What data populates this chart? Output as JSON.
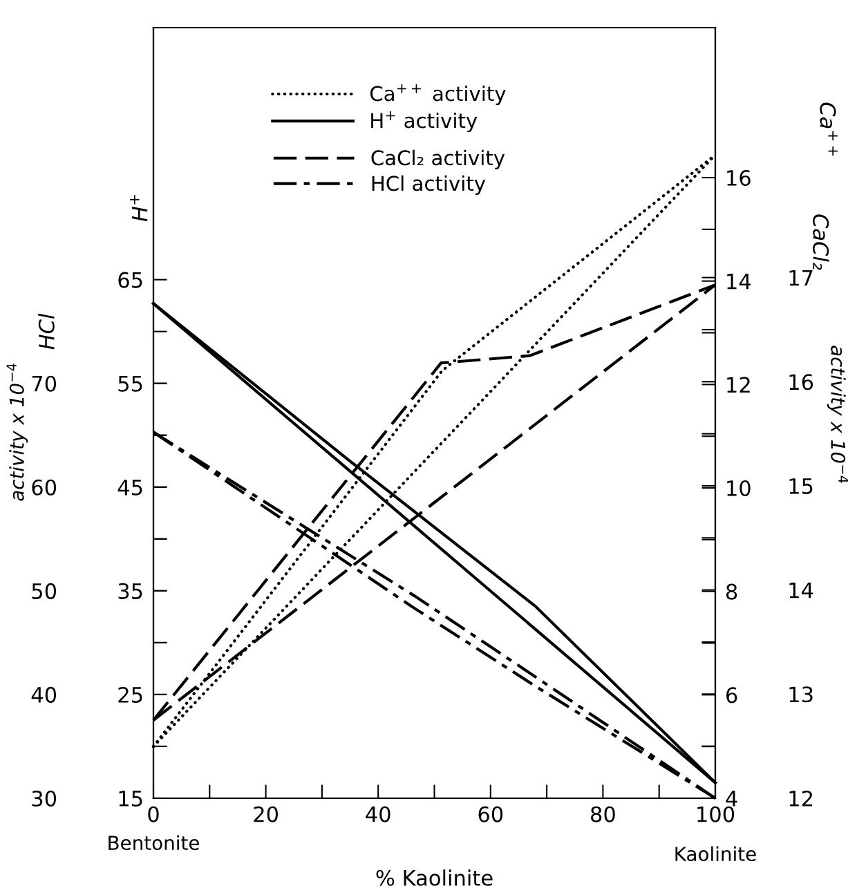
{
  "chart_data": [
    {
      "type": "line",
      "xlabel": "% Kaolinite",
      "ylabel": "H$^{+}$",
      "y2label": "Ca$^{++}$",
      "annotations": [
        "Bentonite",
        "Kaolinite",
        "activity x 10$^{−4}$",
        "activity x 10$^{−4}$"
      ],
      "xlim": [
        0,
        100
      ],
      "xticks": [
        0,
        20,
        40,
        60,
        80,
        100
      ],
      "ylim": [
        15,
        89.3
      ],
      "yticks": [
        15,
        25,
        35,
        45,
        55,
        65
      ],
      "y2lim": [
        4,
        18.9
      ],
      "y2ticks": [
        4,
        6,
        8,
        10,
        12,
        14,
        16
      ],
      "legend": "top",
      "grid": false,
      "series": [
        {
          "name": "Ca$^{++}$ activity",
          "color": "#000000",
          "axis": "y2",
          "line_style": "dotted",
          "x": [
            0,
            51.4,
            100
          ],
          "values": [
            5.0,
            12.27,
            16.44
          ]
        },
        {
          "color": "#000000",
          "axis": "y2",
          "line_style": "dotted",
          "x": [
            0,
            100
          ],
          "values": [
            5.0,
            16.44
          ]
        },
        {
          "name": "H$^{+}$ activity",
          "color": "#000000",
          "axis": "y",
          "line_style": "solid",
          "x": [
            0,
            100
          ],
          "values": [
            62.7,
            16.5
          ]
        },
        {
          "color": "#000000",
          "axis": "y",
          "line_style": "solid",
          "x": [
            0,
            35,
            68,
            100
          ],
          "values": [
            62.7,
            47.5,
            33.5,
            16.5
          ]
        }
      ]
    },
    {
      "type": "line",
      "ylabel": "HCl",
      "y2label": "CaCl₂",
      "tick_labels": "y",
      "legend": "top",
      "grid": false,
      "xlim": [
        0,
        100
      ],
      "ylim": [
        30,
        104.3
      ],
      "yticks": [
        30,
        40,
        50,
        60,
        70
      ],
      "y2lim": [
        12,
        19.4
      ],
      "y2ticks": [
        12,
        13,
        14,
        15,
        16,
        17
      ],
      "series": [
        {
          "name": "CaCl₂ activity",
          "color": "#000000",
          "axis": "y2",
          "line_style": "dashed",
          "x": [
            0,
            51.2,
            67,
            100
          ],
          "values": [
            12.75,
            16.18,
            16.25,
            16.93
          ]
        },
        {
          "color": "#000000",
          "axis": "y2",
          "line_style": "dashed",
          "x": [
            0,
            100
          ],
          "values": [
            12.75,
            16.93
          ]
        },
        {
          "name": "HCl activity",
          "color": "#000000",
          "axis": "y",
          "line_style": "dashdot",
          "x": [
            0,
            46.5,
            68,
            100
          ],
          "values": [
            65.3,
            49.5,
            41.7,
            30
          ]
        },
        {
          "color": "#000000",
          "axis": "y",
          "line_style": "dashdot",
          "x": [
            0,
            46.5,
            68,
            100
          ],
          "values": [
            65.3,
            48.3,
            40.8,
            30
          ]
        }
      ]
    }
  ]
}
